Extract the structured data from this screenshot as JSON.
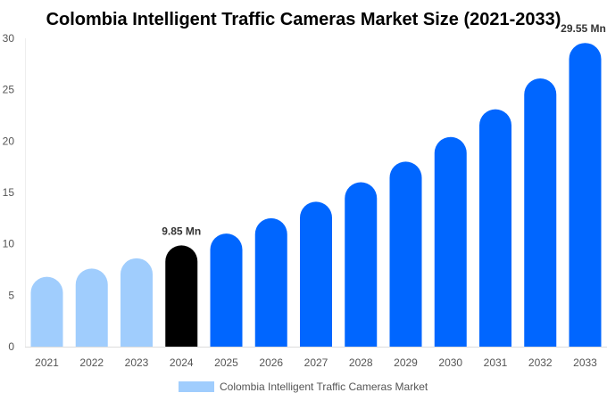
{
  "chart_data": {
    "type": "bar",
    "title": "Colombia Intelligent Traffic Cameras Market Size (2021-2033)",
    "categories": [
      "2021",
      "2022",
      "2023",
      "2024",
      "2025",
      "2026",
      "2027",
      "2028",
      "2029",
      "2030",
      "2031",
      "2032",
      "2033"
    ],
    "series": [
      {
        "name": "Colombia Intelligent Traffic Cameras Market",
        "values": [
          6.8,
          7.6,
          8.6,
          9.85,
          11.0,
          12.5,
          14.1,
          16.0,
          18.0,
          20.4,
          23.1,
          26.1,
          29.55
        ]
      }
    ],
    "ylim": [
      0,
      30
    ],
    "yticks": [
      0,
      5,
      10,
      15,
      20,
      25,
      30
    ],
    "data_labels": {
      "3": "9.85 Mn",
      "12": "29.55 Mn"
    },
    "grid": false,
    "legend_placement": "bottom",
    "colors": {
      "historical": "#a0cdfd",
      "base_year": "#000000",
      "forecast": "#0066ff"
    }
  }
}
